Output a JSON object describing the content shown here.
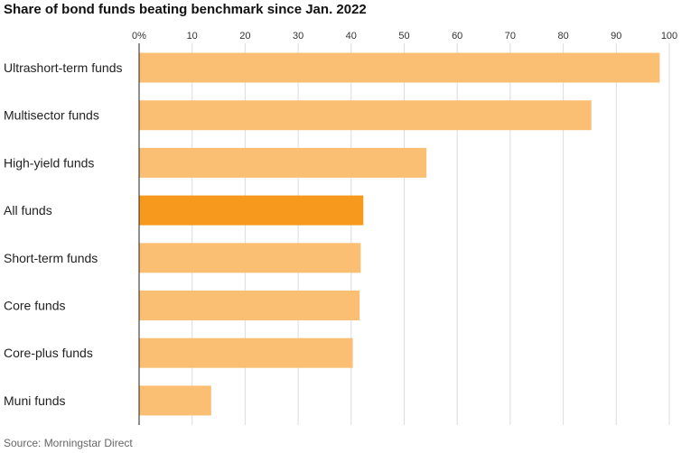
{
  "chart_data": {
    "type": "bar",
    "orientation": "horizontal",
    "title": "Share of bond funds beating benchmark since Jan. 2022",
    "source": "Source: Morningstar Direct",
    "categories": [
      "Ultrashort-term funds",
      "Multisector funds",
      "High-yield funds",
      "All funds",
      "Short-term funds",
      "Core funds",
      "Core-plus funds",
      "Muni funds"
    ],
    "values": [
      98.2,
      85.3,
      54.2,
      42.3,
      41.8,
      41.6,
      40.3,
      13.6
    ],
    "highlight": "All funds",
    "xlim": [
      0,
      100
    ],
    "xticks": [
      0,
      10,
      20,
      30,
      40,
      50,
      60,
      70,
      80,
      90,
      100
    ],
    "xtick_labels": [
      "0%",
      "10",
      "20",
      "30",
      "40",
      "50",
      "60",
      "70",
      "80",
      "90",
      "100"
    ],
    "grid": true,
    "colors": {
      "bar": "#fbbf74",
      "highlight": "#f7991c",
      "grid": "#dcdcdc",
      "axis": "#222222"
    }
  }
}
